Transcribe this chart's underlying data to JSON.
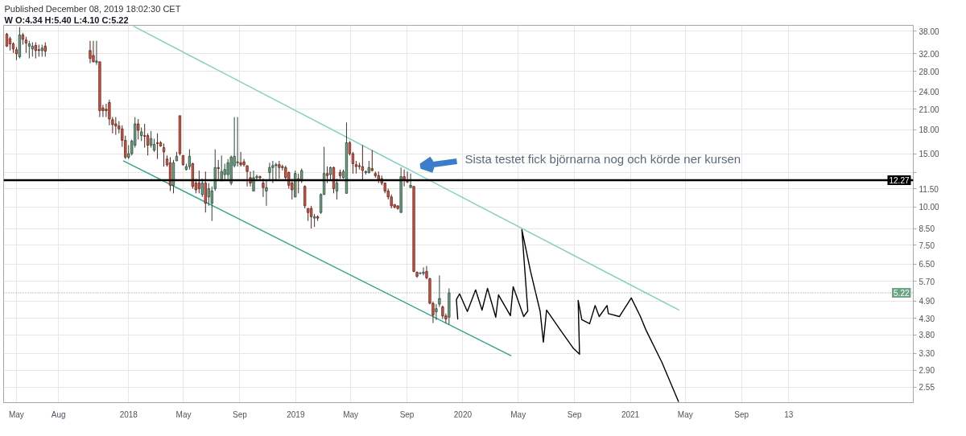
{
  "chart_data": {
    "type": "candlestick",
    "title": "Published December 08, 2019 18:02:30 CET",
    "subtitle": "W O:4.34 H:5.40 L:4.10 C:5.22",
    "x": [
      "2017-04-10",
      "2017-04-17",
      "2017-04-24",
      "2017-05-01",
      "2017-05-08",
      "2017-05-15",
      "2017-05-22",
      "2017-05-29",
      "2017-06-05",
      "2017-06-12",
      "2017-06-19",
      "2017-06-26",
      "2017-07-03",
      "2017-10-09",
      "2017-10-16",
      "2017-10-23",
      "2017-10-30",
      "2017-11-06",
      "2017-11-13",
      "2017-11-20",
      "2017-11-27",
      "2017-12-04",
      "2017-12-11",
      "2017-12-18",
      "2017-12-25",
      "2018-01-01",
      "2018-01-08",
      "2018-01-15",
      "2018-01-22",
      "2018-01-29",
      "2018-02-05",
      "2018-02-12",
      "2018-02-19",
      "2018-02-26",
      "2018-03-05",
      "2018-03-12",
      "2018-03-19",
      "2018-03-26",
      "2018-04-02",
      "2018-04-09",
      "2018-04-16",
      "2018-04-23",
      "2018-04-30",
      "2018-05-07",
      "2018-05-14",
      "2018-05-21",
      "2018-05-28",
      "2018-06-04",
      "2018-06-11",
      "2018-06-18",
      "2018-06-25",
      "2018-07-02",
      "2018-07-09",
      "2018-07-16",
      "2018-07-23",
      "2018-07-30",
      "2018-08-06",
      "2018-08-13",
      "2018-08-20",
      "2018-08-27",
      "2018-09-03",
      "2018-09-10",
      "2018-09-17",
      "2018-09-24",
      "2018-10-01",
      "2018-10-08",
      "2018-10-15",
      "2018-10-22",
      "2018-10-29",
      "2018-11-05",
      "2018-11-12",
      "2018-11-19",
      "2018-11-26",
      "2018-12-03",
      "2018-12-10",
      "2018-12-17",
      "2018-12-24",
      "2018-12-31",
      "2019-01-07",
      "2019-01-14",
      "2019-01-21",
      "2019-01-28",
      "2019-02-04",
      "2019-02-11",
      "2019-02-18",
      "2019-02-25",
      "2019-03-04",
      "2019-03-11",
      "2019-03-18",
      "2019-03-25",
      "2019-04-01",
      "2019-04-08",
      "2019-04-15",
      "2019-04-22",
      "2019-04-29",
      "2019-05-06",
      "2019-05-13",
      "2019-05-20",
      "2019-05-27",
      "2019-06-03",
      "2019-06-10",
      "2019-06-17",
      "2019-06-24",
      "2019-07-01",
      "2019-07-08",
      "2019-07-15",
      "2019-07-22",
      "2019-07-29",
      "2019-08-05",
      "2019-08-12",
      "2019-08-19",
      "2019-08-26",
      "2019-09-02",
      "2019-09-09",
      "2019-09-16",
      "2019-09-23",
      "2019-09-30",
      "2019-10-07",
      "2019-10-14",
      "2019-10-21",
      "2019-10-28",
      "2019-11-04",
      "2019-11-11",
      "2019-11-18",
      "2019-11-25",
      "2019-12-02"
    ],
    "ohlc": [
      [
        37.1,
        37.5,
        33.7,
        33.9
      ],
      [
        35.9,
        36.4,
        32.8,
        34.5
      ],
      [
        34.5,
        34.9,
        32.2,
        33.2
      ],
      [
        33.0,
        33.7,
        30.5,
        32.0
      ],
      [
        31.3,
        39.2,
        30.9,
        36.9
      ],
      [
        36.9,
        37.5,
        34.3,
        35.7
      ],
      [
        35.5,
        36.4,
        32.2,
        34.7
      ],
      [
        33.9,
        35.3,
        30.9,
        34.5
      ],
      [
        33.2,
        34.9,
        31.3,
        33.9
      ],
      [
        34.1,
        34.9,
        30.9,
        32.8
      ],
      [
        33.0,
        34.3,
        31.3,
        32.8
      ],
      [
        32.8,
        34.3,
        31.3,
        33.4
      ],
      [
        33.9,
        34.9,
        31.3,
        32.6
      ],
      [
        32.8,
        35.3,
        29.8,
        30.9
      ],
      [
        31.6,
        35.3,
        30.0,
        30.1
      ],
      [
        30.0,
        35.3,
        29.4,
        30.3
      ],
      [
        30.1,
        30.1,
        19.8,
        20.8
      ],
      [
        21.2,
        21.7,
        19.8,
        20.8
      ],
      [
        21.0,
        21.9,
        19.8,
        20.8
      ],
      [
        22.1,
        22.6,
        18.6,
        19.5
      ],
      [
        19.4,
        19.8,
        17.5,
        18.7
      ],
      [
        18.8,
        19.8,
        17.3,
        18.5
      ],
      [
        18.5,
        19.2,
        17.5,
        18.1
      ],
      [
        18.1,
        18.6,
        15.8,
        16.6
      ],
      [
        16.6,
        17.2,
        14.4,
        14.6
      ],
      [
        14.6,
        16.0,
        14.4,
        15.0
      ],
      [
        15.0,
        16.7,
        14.8,
        16.5
      ],
      [
        16.0,
        19.8,
        15.7,
        18.8
      ],
      [
        18.8,
        19.5,
        16.7,
        17.9
      ],
      [
        17.2,
        18.3,
        16.5,
        17.7
      ],
      [
        17.2,
        18.8,
        15.7,
        17.1
      ],
      [
        17.2,
        17.5,
        14.8,
        16.0
      ],
      [
        16.0,
        17.8,
        15.7,
        16.8
      ],
      [
        15.4,
        16.8,
        15.2,
        16.1
      ],
      [
        16.3,
        17.5,
        14.4,
        16.2
      ],
      [
        16.3,
        16.5,
        15.8,
        15.9
      ],
      [
        15.7,
        16.2,
        13.6,
        15.2
      ],
      [
        14.4,
        14.8,
        13.6,
        13.8
      ],
      [
        14.0,
        14.6,
        11.3,
        11.8
      ],
      [
        11.8,
        14.3,
        11.1,
        14.0
      ],
      [
        14.2,
        15.2,
        14.2,
        14.7
      ],
      [
        20.0,
        20.0,
        14.8,
        15.0
      ],
      [
        14.8,
        14.8,
        13.7,
        13.8
      ],
      [
        13.3,
        13.9,
        13.2,
        13.6
      ],
      [
        13.6,
        15.5,
        13.3,
        14.7
      ],
      [
        13.9,
        14.0,
        11.5,
        11.7
      ],
      [
        12.0,
        12.4,
        11.1,
        11.4
      ],
      [
        12.0,
        13.2,
        11.1,
        11.5
      ],
      [
        11.0,
        12.4,
        10.8,
        12.0
      ],
      [
        12.0,
        13.1,
        9.6,
        10.3
      ],
      [
        10.8,
        12.0,
        10.1,
        11.5
      ],
      [
        10.3,
        11.7,
        9.0,
        11.3
      ],
      [
        11.5,
        15.5,
        11.3,
        13.5
      ],
      [
        13.5,
        14.3,
        12.2,
        13.4
      ],
      [
        12.2,
        14.8,
        12.2,
        13.1
      ],
      [
        12.8,
        13.9,
        12.2,
        13.3
      ],
      [
        12.8,
        14.4,
        12.2,
        14.0
      ],
      [
        12.0,
        14.8,
        11.8,
        14.6
      ],
      [
        13.7,
        19.8,
        13.5,
        14.7
      ],
      [
        14.0,
        19.8,
        13.6,
        14.1
      ],
      [
        14.0,
        15.2,
        13.6,
        13.8
      ],
      [
        14.1,
        14.4,
        13.6,
        13.8
      ],
      [
        13.7,
        13.7,
        11.7,
        13.1
      ],
      [
        12.5,
        13.1,
        11.7,
        12.0
      ],
      [
        11.3,
        13.2,
        11.3,
        12.5
      ],
      [
        12.5,
        12.8,
        12.2,
        12.6
      ],
      [
        12.6,
        12.7,
        12.2,
        12.5
      ],
      [
        12.0,
        12.4,
        10.8,
        11.6
      ],
      [
        11.3,
        12.2,
        10.1,
        11.6
      ],
      [
        13.0,
        14.0,
        12.2,
        13.5
      ],
      [
        13.5,
        14.2,
        12.0,
        13.7
      ],
      [
        13.7,
        14.0,
        12.2,
        13.8
      ],
      [
        13.8,
        14.2,
        12.4,
        13.5
      ],
      [
        13.6,
        13.8,
        13.2,
        13.5
      ],
      [
        13.5,
        13.7,
        12.3,
        12.5
      ],
      [
        13.0,
        13.1,
        11.5,
        11.8
      ],
      [
        12.0,
        12.4,
        10.6,
        11.4
      ],
      [
        10.8,
        13.2,
        10.8,
        12.9
      ],
      [
        12.4,
        12.9,
        11.1,
        12.2
      ],
      [
        12.2,
        13.4,
        12.0,
        13.2
      ],
      [
        11.7,
        11.8,
        9.9,
        10.1
      ],
      [
        9.9,
        9.9,
        9.0,
        9.6
      ],
      [
        9.9,
        10.1,
        8.5,
        9.3
      ],
      [
        9.2,
        9.5,
        8.6,
        9.3
      ],
      [
        9.3,
        9.4,
        9.0,
        9.2
      ],
      [
        9.6,
        11.1,
        9.5,
        11.0
      ],
      [
        11.0,
        15.8,
        11.0,
        12.9
      ],
      [
        12.9,
        13.6,
        12.0,
        12.7
      ],
      [
        12.8,
        13.6,
        12.2,
        13.5
      ],
      [
        13.5,
        13.6,
        11.1,
        11.5
      ],
      [
        11.3,
        12.4,
        10.6,
        12.0
      ],
      [
        13.0,
        13.3,
        12.4,
        12.7
      ],
      [
        12.5,
        13.3,
        12.4,
        13.1
      ],
      [
        11.1,
        19.0,
        11.1,
        16.3
      ],
      [
        16.3,
        16.5,
        14.8,
        15.0
      ],
      [
        15.0,
        15.2,
        12.9,
        13.9
      ],
      [
        13.8,
        14.2,
        12.9,
        13.6
      ],
      [
        13.7,
        14.0,
        13.3,
        13.6
      ],
      [
        13.6,
        16.0,
        12.3,
        13.2
      ],
      [
        13.0,
        13.2,
        12.8,
        13.1
      ],
      [
        13.0,
        14.2,
        12.9,
        13.5
      ],
      [
        13.4,
        15.4,
        13.1,
        13.2
      ],
      [
        12.9,
        13.1,
        12.5,
        12.7
      ],
      [
        12.7,
        13.1,
        12.0,
        12.3
      ],
      [
        12.4,
        12.7,
        11.8,
        12.0
      ],
      [
        12.0,
        12.0,
        11.1,
        11.3
      ],
      [
        11.3,
        11.5,
        10.6,
        10.8
      ],
      [
        10.8,
        11.0,
        9.9,
        10.1
      ],
      [
        10.2,
        10.2,
        9.9,
        10.0
      ],
      [
        10.1,
        10.1,
        9.8,
        9.9
      ],
      [
        9.6,
        13.5,
        9.6,
        12.6
      ],
      [
        12.6,
        13.3,
        11.7,
        12.3
      ],
      [
        12.3,
        13.1,
        12.0,
        12.1
      ],
      [
        11.6,
        12.9,
        11.6,
        11.8
      ],
      [
        11.7,
        11.7,
        6.1,
        6.14
      ],
      [
        6.1,
        6.14,
        5.85,
        5.92
      ],
      [
        6.05,
        6.1,
        6.0,
        6.07
      ],
      [
        6.05,
        6.33,
        5.96,
        6.1
      ],
      [
        6.14,
        6.4,
        5.78,
        5.85
      ],
      [
        5.81,
        5.85,
        4.79,
        4.82
      ],
      [
        4.82,
        4.88,
        4.15,
        4.41
      ],
      [
        4.52,
        4.79,
        4.25,
        4.63
      ],
      [
        4.79,
        5.96,
        4.69,
        5.0
      ],
      [
        4.69,
        4.74,
        4.28,
        4.38
      ],
      [
        4.38,
        4.46,
        4.15,
        4.28
      ],
      [
        4.34,
        5.4,
        4.1,
        5.22
      ]
    ],
    "colors": [
      "#d75442",
      "#d75442",
      "#d75442",
      "#d75442",
      "#6ba583",
      "#d75442",
      "#d75442",
      "#6ba583",
      "#6ba583",
      "#d75442",
      "#d75442",
      "#6ba583",
      "#d75442",
      "#d75442",
      "#d75442",
      "#6ba583",
      "#d75442",
      "#d75442",
      "#d75442",
      "#d75442",
      "#d75442",
      "#d75442",
      "#d75442",
      "#d75442",
      "#d75442",
      "#6ba583",
      "#6ba583",
      "#6ba583",
      "#d75442",
      "#6ba583",
      "#d75442",
      "#d75442",
      "#6ba583",
      "#6ba583",
      "#d75442",
      "#d75442",
      "#d75442",
      "#d75442",
      "#d75442",
      "#6ba583",
      "#6ba583",
      "#d75442",
      "#d75442",
      "#6ba583",
      "#6ba583",
      "#d75442",
      "#d75442",
      "#d75442",
      "#6ba583",
      "#d75442",
      "#6ba583",
      "#6ba583",
      "#6ba583",
      "#d75442",
      "#6ba583",
      "#6ba583",
      "#6ba583",
      "#6ba583",
      "#6ba583",
      "#6ba583",
      "#d75442",
      "#d75442",
      "#d75442",
      "#d75442",
      "#6ba583",
      "#6ba583",
      "#d75442",
      "#d75442",
      "#6ba583",
      "#6ba583",
      "#6ba583",
      "#6ba583",
      "#d75442",
      "#d75442",
      "#d75442",
      "#d75442",
      "#d75442",
      "#6ba583",
      "#d75442",
      "#6ba583",
      "#d75442",
      "#d75442",
      "#d75442",
      "#6ba583",
      "#d75442",
      "#6ba583",
      "#6ba583",
      "#d75442",
      "#6ba583",
      "#d75442",
      "#6ba583",
      "#d75442",
      "#6ba583",
      "#6ba583",
      "#d75442",
      "#d75442",
      "#d75442",
      "#d75442",
      "#d75442",
      "#6ba583",
      "#6ba583",
      "#d75442",
      "#d75442",
      "#d75442",
      "#d75442",
      "#d75442",
      "#d75442",
      "#d75442",
      "#d75442",
      "#d75442",
      "#6ba583",
      "#d75442",
      "#d75442",
      "#6ba583",
      "#d75442",
      "#d75442",
      "#6ba583",
      "#6ba583",
      "#d75442",
      "#d75442",
      "#d75442",
      "#6ba583",
      "#6ba583",
      "#d75442",
      "#d75442",
      "#6ba583"
    ],
    "series": [
      {
        "type": "line",
        "x": [
          "2018-01-12",
          "2021-04-17"
        ],
        "values": [
          39.4,
          4.58
        ],
        "color": "#80cfc2"
      },
      {
        "type": "line",
        "x": [
          "2017-12-21",
          "2020-04-15"
        ],
        "values": [
          14.2,
          3.24
        ],
        "color": "#2fa58c"
      },
      {
        "type": "line",
        "x": [
          "2019-12-21",
          "2019-12-18",
          "2019-12-25",
          "2020-01-11",
          "2020-01-29",
          "2020-02-12",
          "2020-02-24",
          "2020-03-13",
          "2020-03-19",
          "2020-04-14",
          "2020-04-20",
          "2020-05-13",
          "2020-05-22",
          "2020-05-09",
          "2020-05-28",
          "2020-06-18",
          "2020-06-25",
          "2020-07-02",
          "2020-08-01",
          "2020-08-30",
          "2020-09-12",
          "2020-09-09",
          "2020-09-17",
          "2020-10-04",
          "2020-10-16",
          "2020-10-25",
          "2020-11-11",
          "2020-11-14",
          "2020-12-08",
          "2021-01-03",
          "2021-01-23",
          "2021-02-04",
          "2021-03-11",
          "2021-04-16"
        ],
        "values": [
          4.28,
          4.96,
          5.18,
          4.53,
          5.34,
          4.58,
          5.4,
          4.34,
          5.14,
          4.39,
          5.47,
          4.36,
          4.55,
          8.43,
          6.14,
          4.53,
          3.59,
          4.58,
          3.94,
          3.42,
          3.28,
          4.93,
          4.26,
          4.13,
          4.74,
          4.36,
          4.74,
          4.46,
          4.36,
          5.02,
          4.36,
          3.94,
          3.08,
          2.29
        ],
        "color": "#000000"
      }
    ],
    "ref_lines": [
      {
        "axis": "y",
        "value": 12.27,
        "label": "12.27",
        "color": "#000000"
      },
      {
        "axis": "y",
        "value": 5.22,
        "label": "5.22",
        "color": "#6ba583",
        "line_style": "dotted"
      }
    ],
    "annotations": [
      "Sista testet fick björnarna nog och körde ner kursen"
    ],
    "xlim": [
      "2017-04-03",
      "2022-09-11"
    ],
    "xticks": [
      {
        "value": "2017-05-01",
        "label": "May"
      },
      {
        "value": "2017-08-01",
        "label": "Aug"
      },
      {
        "value": "2018-01-01",
        "label": "2018"
      },
      {
        "value": "2018-05-01",
        "label": "May"
      },
      {
        "value": "2018-09-01",
        "label": "Sep"
      },
      {
        "value": "2019-01-01",
        "label": "2019"
      },
      {
        "value": "2019-05-01",
        "label": "May"
      },
      {
        "value": "2019-09-01",
        "label": "Sep"
      },
      {
        "value": "2020-01-01",
        "label": "2020"
      },
      {
        "value": "2020-05-01",
        "label": "May"
      },
      {
        "value": "2020-09-01",
        "label": "Sep"
      },
      {
        "value": "2021-01-01",
        "label": "2021"
      },
      {
        "value": "2021-05-01",
        "label": "May"
      },
      {
        "value": "2021-09-01",
        "label": "Sep"
      },
      {
        "value": "2021-12-13",
        "label": "13"
      }
    ],
    "ylim": [
      2.27,
      39.7
    ],
    "yticks": [
      {
        "value": 2.55,
        "label": "2.55"
      },
      {
        "value": 2.9,
        "label": "2.90"
      },
      {
        "value": 3.3,
        "label": "3.30"
      },
      {
        "value": 3.8,
        "label": "3.80"
      },
      {
        "value": 4.3,
        "label": "4.30"
      },
      {
        "value": 4.9,
        "label": "4.90"
      },
      {
        "value": 5.7,
        "label": "5.70"
      },
      {
        "value": 6.5,
        "label": "6.50"
      },
      {
        "value": 7.5,
        "label": "7.50"
      },
      {
        "value": 8.5,
        "label": "8.50"
      },
      {
        "value": 10,
        "label": "10.00"
      },
      {
        "value": 11.5,
        "label": "11.50"
      },
      {
        "value": 13,
        "label": null
      },
      {
        "value": 15,
        "label": "15.00"
      },
      {
        "value": 18,
        "label": "18.00"
      },
      {
        "value": 21,
        "label": "21.00"
      },
      {
        "value": 24,
        "label": "24.00"
      },
      {
        "value": 28,
        "label": "28.00"
      },
      {
        "value": 32,
        "label": "32.00"
      },
      {
        "value": 38,
        "label": "38.00"
      }
    ],
    "log": true,
    "grid": true
  }
}
